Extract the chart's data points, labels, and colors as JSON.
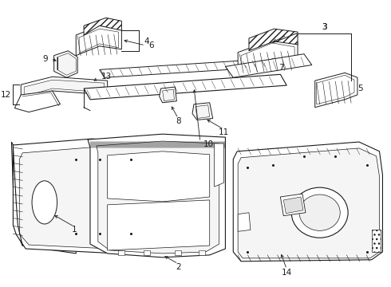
{
  "bg_color": "#ffffff",
  "line_color": "#1a1a1a",
  "fig_width": 4.9,
  "fig_height": 3.6,
  "dpi": 100,
  "label_fontsize": 7.5
}
